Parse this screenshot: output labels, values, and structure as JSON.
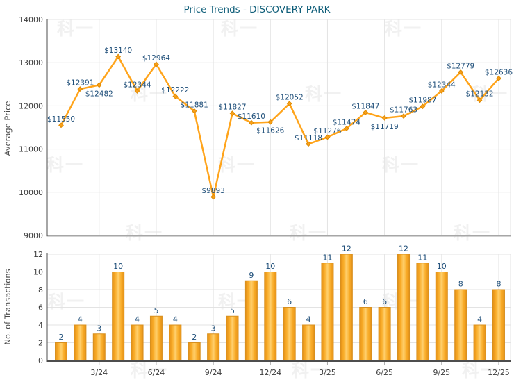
{
  "title": "Price Trends - DISCOVERY PARK",
  "watermark": {
    "text": "科一"
  },
  "colors": {
    "title_text": "#0F5E79",
    "data_label": "#1E4E79",
    "tick_text": "#3D3D3D",
    "grid": "#E3E3E3",
    "axis_dark": "#4D4D4D",
    "axis_light": "#A6A6A6",
    "line": "#FFA41B",
    "marker_fill": "#F9A01B",
    "marker_stroke": "#DE8A00",
    "bar_edge": "#D8901F",
    "bar_grad_outer": "#E39018",
    "bar_grad_mid": "#F9AC28",
    "bar_grad_center": "#FFD06E"
  },
  "chart_data": [
    {
      "type": "line",
      "title": "Price Trends - DISCOVERY PARK",
      "ylabel": "Average Price",
      "ylim": [
        9000,
        14000
      ],
      "yticks": [
        14000,
        13000,
        12000,
        11000,
        10000,
        9000
      ],
      "grid": "on",
      "label_prefix": "$",
      "x": [
        "1/24",
        "2/24",
        "3/24",
        "4/24",
        "5/24",
        "6/24",
        "7/24",
        "8/24",
        "9/24",
        "10/24",
        "11/24",
        "12/24",
        "1/25",
        "2/25",
        "3/25",
        "4/25",
        "5/25",
        "6/25",
        "7/25",
        "8/25",
        "9/25",
        "10/25",
        "11/25",
        "12/25"
      ],
      "values": [
        11550,
        12391,
        12482,
        13140,
        12344,
        12964,
        12222,
        11881,
        9893,
        11827,
        11610,
        11626,
        12052,
        11118,
        11276,
        11474,
        11847,
        11719,
        11763,
        11987,
        12344,
        12779,
        12132,
        12636
      ],
      "label_side": [
        "above",
        "above",
        "below",
        "above",
        "above",
        "above",
        "above",
        "above",
        "above",
        "above",
        "above",
        "below",
        "above",
        "above",
        "above",
        "above",
        "above",
        "below",
        "above",
        "above",
        "above",
        "above",
        "above",
        "above"
      ]
    },
    {
      "type": "bar",
      "ylabel": "No. of Transactions",
      "ylim": [
        0,
        12
      ],
      "yticks": [
        12,
        10,
        8,
        6,
        4,
        2,
        0
      ],
      "grid": "on",
      "x": [
        "1/24",
        "2/24",
        "3/24",
        "4/24",
        "5/24",
        "6/24",
        "7/24",
        "8/24",
        "9/24",
        "10/24",
        "11/24",
        "12/24",
        "1/25",
        "2/25",
        "3/25",
        "4/25",
        "5/25",
        "6/25",
        "7/25",
        "8/25",
        "9/25",
        "10/25",
        "11/25",
        "12/25"
      ],
      "values": [
        2,
        4,
        3,
        10,
        4,
        5,
        4,
        2,
        3,
        5,
        9,
        10,
        6,
        4,
        11,
        12,
        6,
        6,
        12,
        11,
        10,
        8,
        4,
        8
      ],
      "xtick_labels": [
        "3/24",
        "6/24",
        "9/24",
        "12/24",
        "3/25",
        "6/25",
        "9/25",
        "12/25"
      ],
      "xtick_month_indexes": [
        2,
        5,
        8,
        11,
        14,
        17,
        20,
        23
      ]
    }
  ]
}
